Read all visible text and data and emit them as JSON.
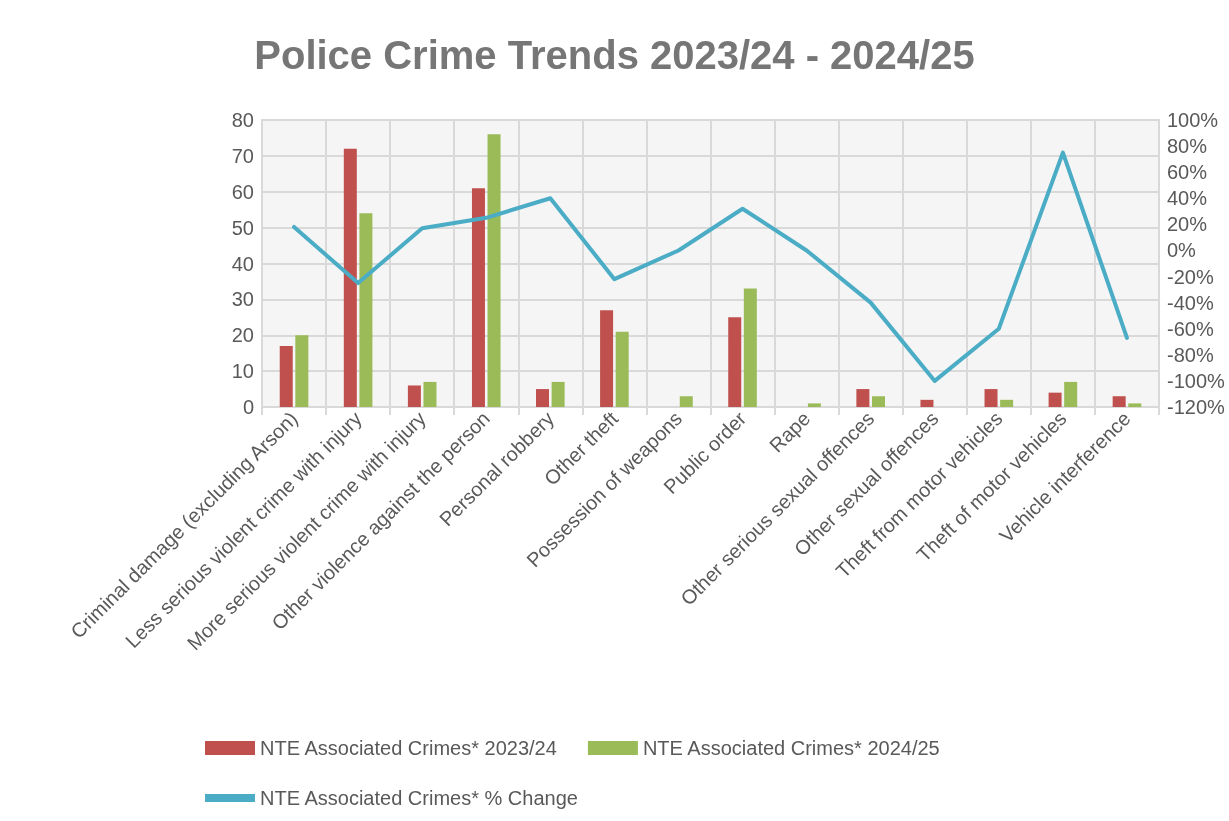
{
  "chart_data": {
    "type": "bar",
    "title": "Police Crime Trends 2023/24 - 2024/25",
    "categories": [
      "Criminal damage (excluding Arson)",
      "Less serious violent crime with injury",
      "More serious violent crime with injury",
      "Other violence against the person",
      "Personal robbery",
      "Other theft",
      "Possession of weapons",
      "Public order",
      "Rape",
      "Other serious sexual offences",
      "Other sexual offences",
      "Theft from motor vehicles",
      "Theft of motor vehicles",
      "Vehicle interference"
    ],
    "series": [
      {
        "name": "NTE Associated Crimes* 2023/24",
        "color": "#c0504d",
        "values": [
          17,
          72,
          6,
          61,
          5,
          27,
          0,
          25,
          0,
          5,
          2,
          5,
          4,
          3
        ]
      },
      {
        "name": "NTE Associated Crimes* 2024/25",
        "color": "#9bbb59",
        "values": [
          20,
          54,
          7,
          76,
          7,
          21,
          3,
          33,
          1,
          3,
          0,
          2,
          7,
          1
        ]
      },
      {
        "name": "NTE Associated Crimes* % Change",
        "type": "line",
        "axis": "y2",
        "color": "#4bacc6",
        "values": [
          18,
          -25,
          17,
          25,
          40,
          -22,
          0,
          32,
          0,
          -40,
          -100,
          -60,
          75,
          -67
        ]
      }
    ],
    "ylim": [
      0,
      80
    ],
    "yticks": [
      0,
      10,
      20,
      30,
      40,
      50,
      60,
      70,
      80
    ],
    "y2lim": [
      -120,
      100
    ],
    "y2ticks": [
      {
        "value": -120,
        "label": "-120%"
      },
      {
        "value": -100,
        "label": "-100%"
      },
      {
        "value": -80,
        "label": "-80%"
      },
      {
        "value": -60,
        "label": "-60%"
      },
      {
        "value": -40,
        "label": "-40%"
      },
      {
        "value": -20,
        "label": "-20%"
      },
      {
        "value": 0,
        "label": "0%"
      },
      {
        "value": 20,
        "label": "20%"
      },
      {
        "value": 40,
        "label": "40%"
      },
      {
        "value": 60,
        "label": "60%"
      },
      {
        "value": 80,
        "label": "80%"
      },
      {
        "value": 100,
        "label": "100%"
      }
    ],
    "grid": true,
    "legend": "bottom",
    "marker": "none"
  }
}
